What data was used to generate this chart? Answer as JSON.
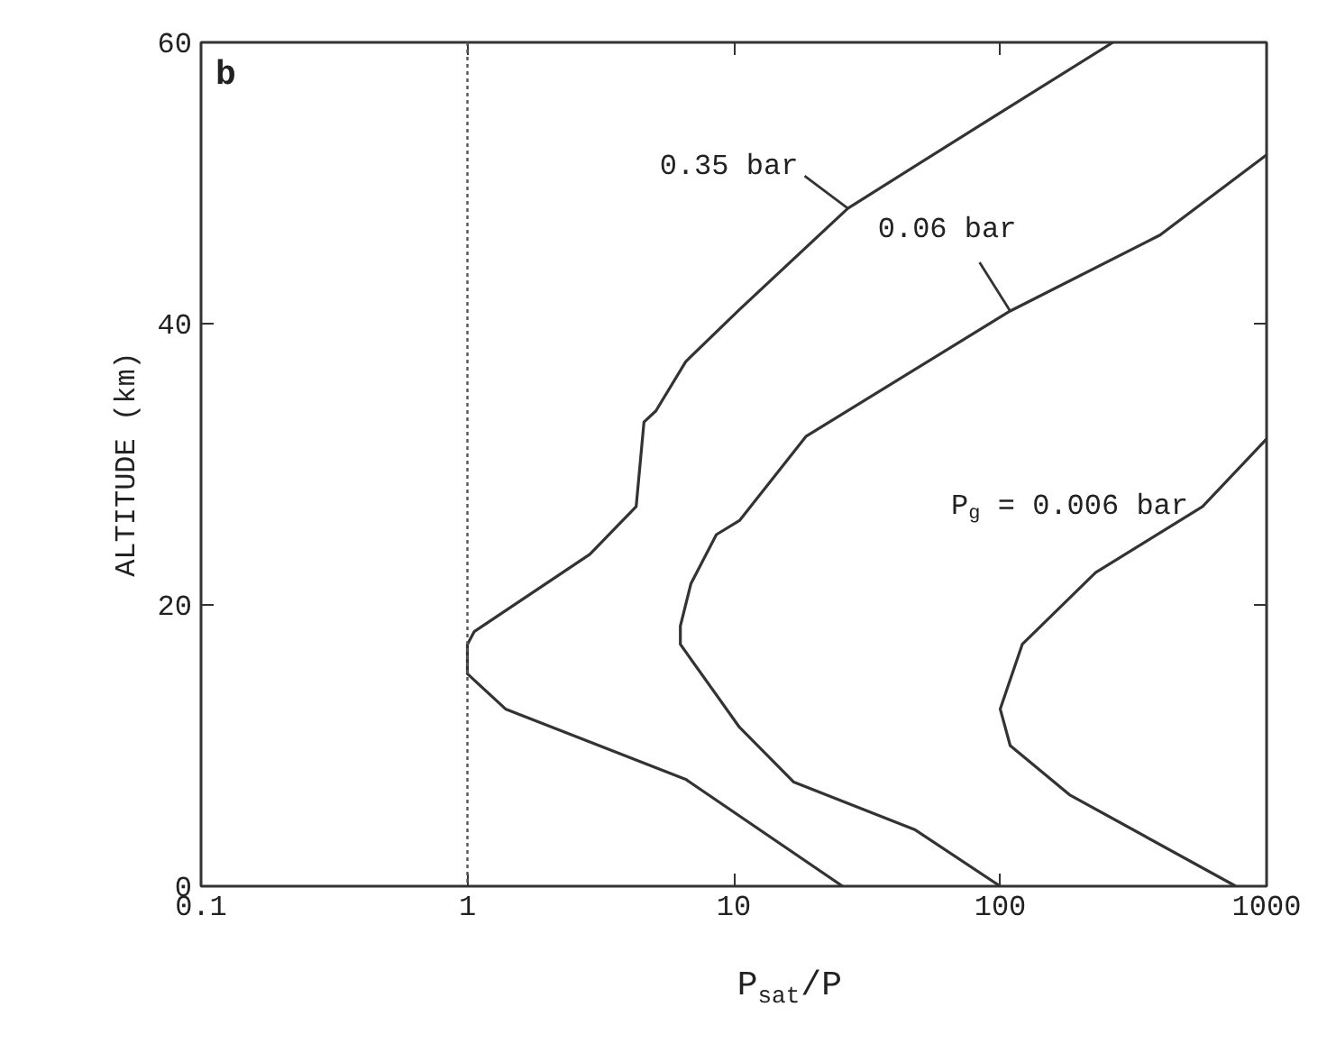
{
  "chart_data": {
    "type": "line",
    "xlabel": "P$_{sat}$/P",
    "ylabel": "ALTITUDE (km)",
    "log": "x",
    "xlim": [
      0.1,
      1000
    ],
    "xticks": [
      0.1,
      1,
      10,
      100,
      1000
    ],
    "ylim": [
      0,
      60
    ],
    "yticks": [
      0,
      20,
      40,
      60
    ],
    "grid": false,
    "marker": "none",
    "line_style": "solid",
    "ref_lines": [
      {
        "axis": "x",
        "value": 1,
        "line_style": "dotted",
        "color": "#555555"
      }
    ],
    "annotations": [
      "b",
      {
        "text": "0.35 bar",
        "x": 26.8,
        "y": 48.2
      },
      {
        "text": "0.06 bar",
        "x": 109,
        "y": 40.9
      },
      {
        "text": "P$_{g}$ = 0.006 bar",
        "x": 575,
        "y": 27
      }
    ],
    "series": [
      {
        "color": "#333333",
        "x": [
          25.6,
          6.6,
          1.39,
          1.0,
          1.0,
          1.06,
          2.88,
          4.3,
          4.6,
          5.1,
          6.6,
          10.5,
          26.8,
          89,
          265
        ],
        "values": [
          0,
          7.6,
          12.6,
          15.1,
          17.2,
          18.1,
          23.6,
          27,
          33,
          33.8,
          37.3,
          41,
          48.2,
          54.4,
          60
        ]
      },
      {
        "color": "#333333",
        "x": [
          100,
          48,
          16.8,
          10.5,
          6.3,
          6.3,
          6.9,
          8.6,
          10.5,
          18.7,
          109,
          398,
          1000
        ],
        "values": [
          0,
          4,
          7.4,
          11.3,
          17.2,
          18.5,
          21.5,
          25,
          26,
          32,
          40.9,
          46.3,
          52
        ]
      },
      {
        "color": "#333333",
        "x": [
          766,
          182,
          109,
          100,
          121,
          228,
          575,
          1000
        ],
        "values": [
          0,
          6.5,
          10,
          12.6,
          17.2,
          22.3,
          27,
          31.8
        ]
      }
    ]
  }
}
